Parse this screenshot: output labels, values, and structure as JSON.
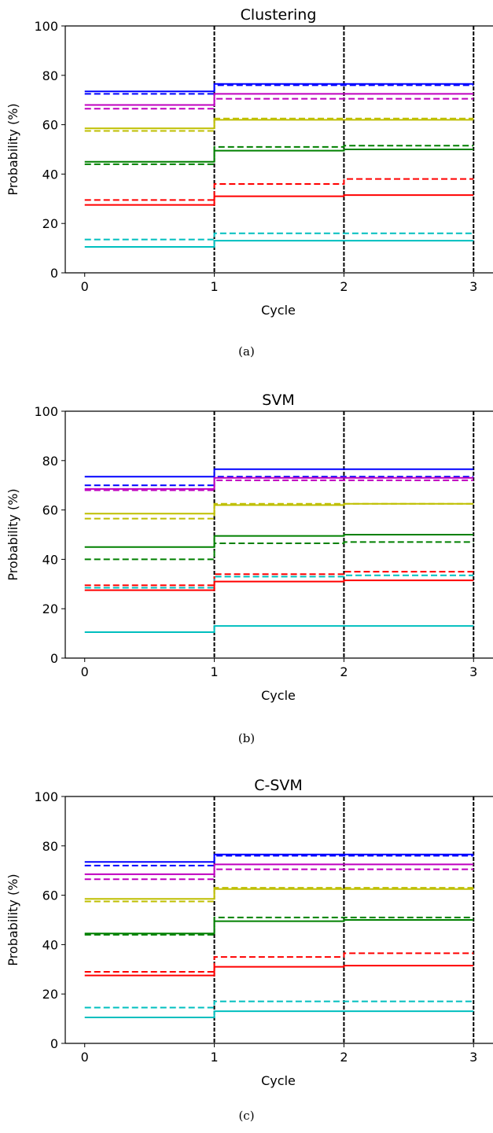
{
  "chart_data": [
    {
      "type": "line",
      "title": "Clustering",
      "xlabel": "Cycle",
      "ylabel": "Probability (%)",
      "caption": "(a)",
      "xlim": [
        -0.15,
        3.15
      ],
      "ylim": [
        0,
        100
      ],
      "xticks": [
        0,
        1,
        2,
        3
      ],
      "yticks": [
        0,
        20,
        40,
        60,
        80,
        100
      ],
      "vlines": [
        1,
        2,
        3
      ],
      "series": [
        {
          "color": "#0000ff",
          "style": "solid",
          "values": [
            73.5,
            76.5,
            76.5
          ]
        },
        {
          "color": "#0000ff",
          "style": "dashed",
          "values": [
            72.5,
            76.0,
            76.0
          ]
        },
        {
          "color": "#bf00bf",
          "style": "solid",
          "values": [
            68.0,
            72.5,
            72.5
          ]
        },
        {
          "color": "#bf00bf",
          "style": "dashed",
          "values": [
            66.5,
            70.5,
            70.5
          ]
        },
        {
          "color": "#bfbf00",
          "style": "solid",
          "values": [
            58.5,
            62.0,
            62.0
          ]
        },
        {
          "color": "#bfbf00",
          "style": "dashed",
          "values": [
            57.5,
            62.5,
            62.5
          ]
        },
        {
          "color": "#008000",
          "style": "dashed",
          "values": [
            44.0,
            51.0,
            51.5
          ]
        },
        {
          "color": "#008000",
          "style": "solid",
          "values": [
            45.0,
            49.5,
            50.0
          ]
        },
        {
          "color": "#ff0000",
          "style": "dashed",
          "values": [
            29.5,
            36.0,
            38.0
          ]
        },
        {
          "color": "#ff0000",
          "style": "solid",
          "values": [
            27.5,
            31.0,
            31.5
          ]
        },
        {
          "color": "#00bfbf",
          "style": "dashed",
          "values": [
            13.5,
            16.0,
            16.0
          ]
        },
        {
          "color": "#00bfbf",
          "style": "solid",
          "values": [
            10.5,
            13.0,
            13.0
          ]
        }
      ]
    },
    {
      "type": "line",
      "title": "SVM",
      "xlabel": "Cycle",
      "ylabel": "Probability (%)",
      "caption": "(b)",
      "xlim": [
        -0.15,
        3.15
      ],
      "ylim": [
        0,
        100
      ],
      "xticks": [
        0,
        1,
        2,
        3
      ],
      "yticks": [
        0,
        20,
        40,
        60,
        80,
        100
      ],
      "vlines": [
        1,
        2,
        3
      ],
      "series": [
        {
          "color": "#0000ff",
          "style": "solid",
          "values": [
            73.5,
            76.5,
            76.5
          ]
        },
        {
          "color": "#0000ff",
          "style": "dashed",
          "values": [
            70.0,
            73.5,
            73.5
          ]
        },
        {
          "color": "#bf00bf",
          "style": "solid",
          "values": [
            68.5,
            73.0,
            73.0
          ]
        },
        {
          "color": "#bf00bf",
          "style": "dashed",
          "values": [
            68.0,
            72.0,
            72.0
          ]
        },
        {
          "color": "#bfbf00",
          "style": "solid",
          "values": [
            58.5,
            62.0,
            62.5
          ]
        },
        {
          "color": "#bfbf00",
          "style": "dashed",
          "values": [
            56.5,
            62.5,
            62.5
          ]
        },
        {
          "color": "#008000",
          "style": "solid",
          "values": [
            45.0,
            49.5,
            50.0
          ]
        },
        {
          "color": "#008000",
          "style": "dashed",
          "values": [
            40.0,
            46.5,
            47.0
          ]
        },
        {
          "color": "#ff0000",
          "style": "dashed",
          "values": [
            29.5,
            34.0,
            35.0
          ]
        },
        {
          "color": "#00bfbf",
          "style": "dashed",
          "values": [
            28.5,
            33.0,
            33.5
          ]
        },
        {
          "color": "#ff0000",
          "style": "solid",
          "values": [
            27.5,
            31.0,
            31.5
          ]
        },
        {
          "color": "#00bfbf",
          "style": "solid",
          "values": [
            10.5,
            13.0,
            13.0
          ]
        }
      ]
    },
    {
      "type": "line",
      "title": "C-SVM",
      "xlabel": "Cycle",
      "ylabel": "Probability (%)",
      "caption": "(c)",
      "xlim": [
        -0.15,
        3.15
      ],
      "ylim": [
        0,
        100
      ],
      "xticks": [
        0,
        1,
        2,
        3
      ],
      "yticks": [
        0,
        20,
        40,
        60,
        80,
        100
      ],
      "vlines": [
        1,
        2,
        3
      ],
      "series": [
        {
          "color": "#0000ff",
          "style": "solid",
          "values": [
            73.5,
            76.5,
            76.5
          ]
        },
        {
          "color": "#0000ff",
          "style": "dashed",
          "values": [
            72.0,
            76.0,
            76.0
          ]
        },
        {
          "color": "#bf00bf",
          "style": "solid",
          "values": [
            68.5,
            72.5,
            72.5
          ]
        },
        {
          "color": "#bf00bf",
          "style": "dashed",
          "values": [
            66.5,
            70.5,
            70.5
          ]
        },
        {
          "color": "#bfbf00",
          "style": "solid",
          "values": [
            58.5,
            62.5,
            62.5
          ]
        },
        {
          "color": "#bfbf00",
          "style": "dashed",
          "values": [
            57.5,
            63.0,
            63.0
          ]
        },
        {
          "color": "#008000",
          "style": "dashed",
          "values": [
            44.0,
            51.0,
            51.0
          ]
        },
        {
          "color": "#008000",
          "style": "solid",
          "values": [
            44.5,
            49.5,
            50.0
          ]
        },
        {
          "color": "#ff0000",
          "style": "dashed",
          "values": [
            29.0,
            35.0,
            36.5
          ]
        },
        {
          "color": "#ff0000",
          "style": "solid",
          "values": [
            27.5,
            31.0,
            31.5
          ]
        },
        {
          "color": "#00bfbf",
          "style": "dashed",
          "values": [
            14.5,
            17.0,
            17.0
          ]
        },
        {
          "color": "#00bfbf",
          "style": "solid",
          "values": [
            10.5,
            13.0,
            13.0
          ]
        }
      ]
    }
  ]
}
